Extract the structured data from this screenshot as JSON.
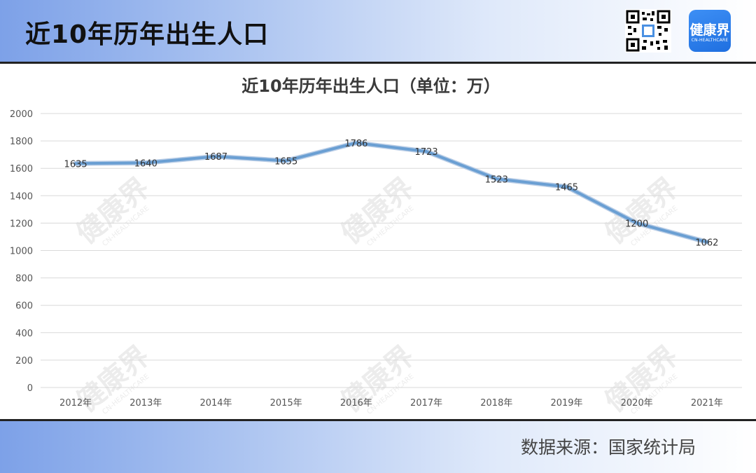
{
  "header": {
    "title": "近10年历年出生人口",
    "logo_text": "健康界",
    "logo_sub": "CN-HEALTHCARE"
  },
  "footer": {
    "source": "数据来源：国家统计局"
  },
  "watermark": {
    "main": "健康界",
    "sub": "CN-HEALTHCARE"
  },
  "colors": {
    "line": "#6a9fd3",
    "grid": "#d9d9d9",
    "label": "#333333"
  },
  "chart_data": {
    "type": "line",
    "title": "近10年历年出生人口（单位：万）",
    "categories": [
      "2012年",
      "2013年",
      "2014年",
      "2015年",
      "2016年",
      "2017年",
      "2018年",
      "2019年",
      "2020年",
      "2021年"
    ],
    "series": [
      {
        "values": [
          1635,
          1640,
          1687,
          1655,
          1786,
          1723,
          1523,
          1465,
          1200,
          1062
        ]
      }
    ],
    "ylim": [
      0,
      2000
    ],
    "yticks": [
      0,
      200,
      400,
      600,
      800,
      1000,
      1200,
      1400,
      1600,
      1800,
      2000
    ],
    "grid": true,
    "legend": "none"
  }
}
